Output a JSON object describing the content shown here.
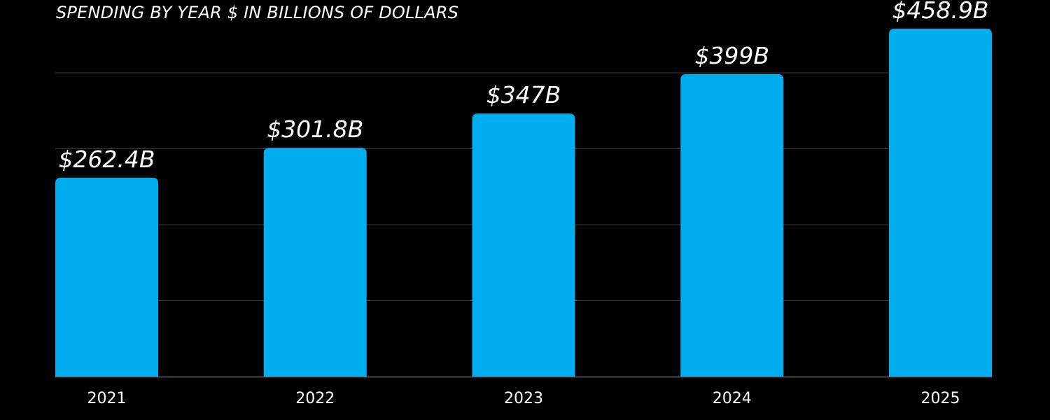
{
  "chart_data": {
    "type": "bar",
    "title": "SPENDING BY YEAR $ IN BILLIONS OF DOLLARS",
    "categories": [
      "2021",
      "2022",
      "2023",
      "2024",
      "2025"
    ],
    "values": [
      262.4,
      301.8,
      347,
      399,
      458.9
    ],
    "value_labels": [
      "$262.4B",
      "$301.8B",
      "$347B",
      "$399B",
      "$458.9B"
    ],
    "xlabel": "",
    "ylabel": "",
    "ylim": [
      0,
      458.9
    ],
    "grid": true,
    "legend": "none",
    "colors": {
      "bar": "#00adef",
      "background": "#000000",
      "text": "#ffffff",
      "gridline": "#3a3a3a",
      "axis": "#6a6a6a"
    }
  }
}
